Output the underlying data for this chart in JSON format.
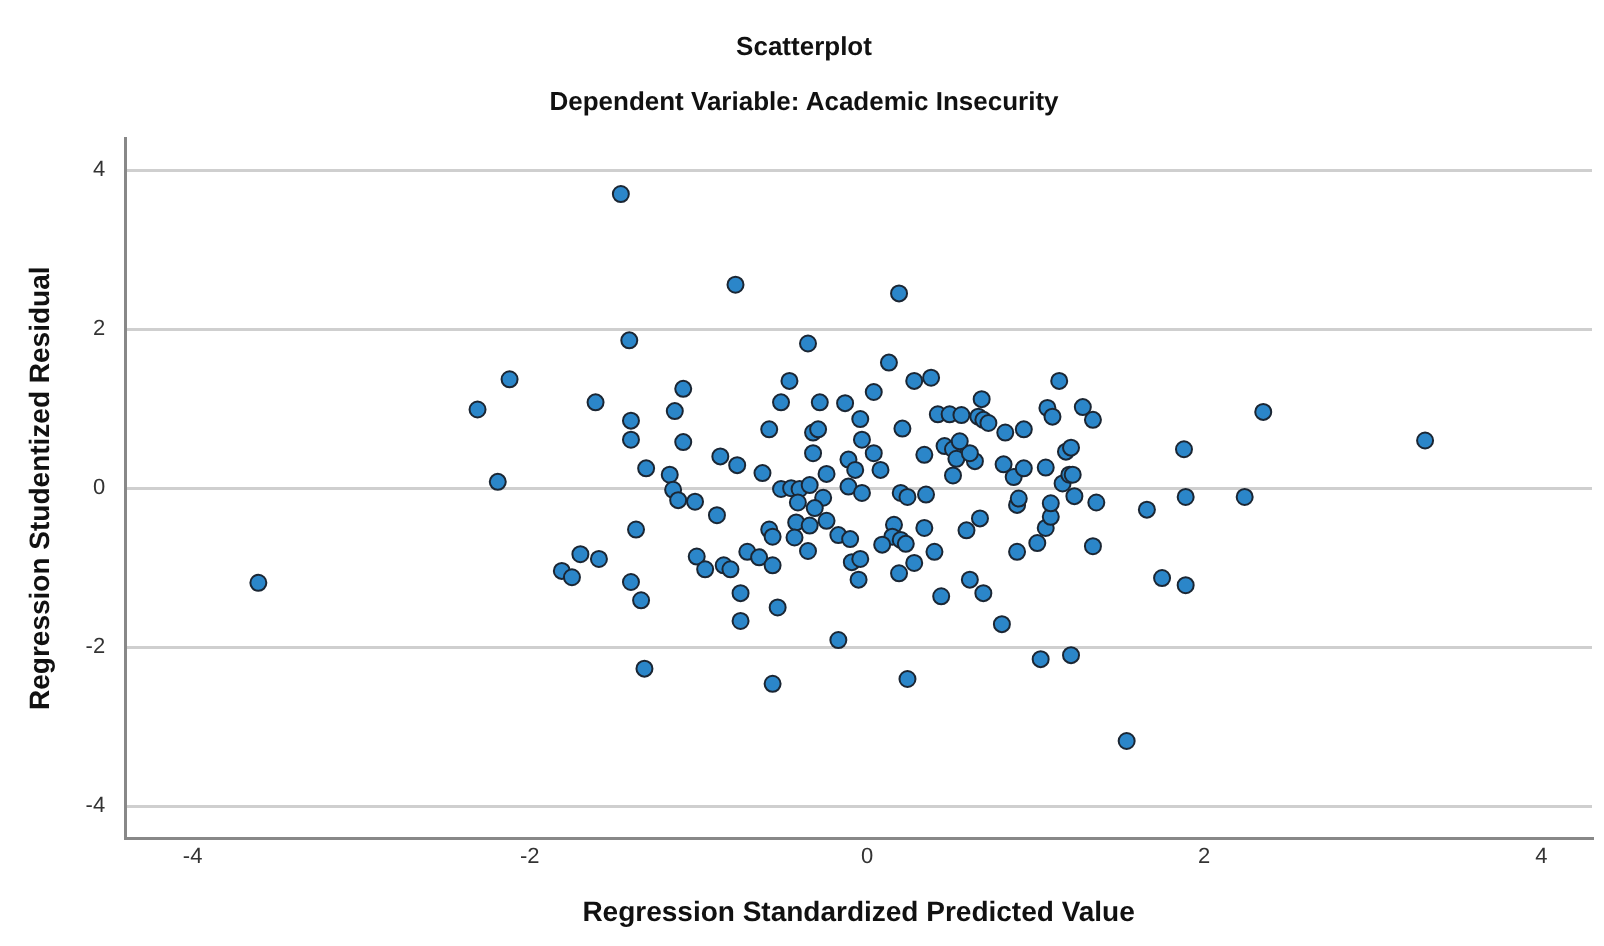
{
  "chart_data": {
    "type": "scatter",
    "title": "Scatterplot",
    "subtitle": "Dependent Variable: Academic Insecurity",
    "xlabel": "Regression Standardized Predicted Value",
    "ylabel": "Regression Studentized Residual",
    "xlim": [
      -4.4,
      4.3
    ],
    "ylim": [
      -4.4,
      4.4
    ],
    "xticks": [
      -4,
      -2,
      0,
      2,
      4
    ],
    "yticks": [
      -4,
      -2,
      0,
      2,
      4
    ],
    "grid": "y",
    "legend": false,
    "marker": "circle",
    "series": [
      {
        "color": "#2b86c9",
        "x": [
          -3.61,
          -2.31,
          -2.12,
          -2.19,
          -1.61,
          -1.81,
          -1.75,
          -1.7,
          -1.59,
          -1.46,
          -0.78,
          0.19,
          -1.41,
          -0.35,
          0.13,
          -1.09,
          -0.46,
          0.28,
          0.38,
          -1.4,
          -1.14,
          -0.51,
          -0.28,
          -0.13,
          0.04,
          -0.04,
          0.42,
          0.49,
          -1.4,
          -1.09,
          -0.58,
          -0.32,
          -0.29,
          -0.03,
          0.21,
          -1.31,
          -1.17,
          -0.87,
          -0.77,
          -0.62,
          -0.32,
          -0.24,
          -0.11,
          -0.07,
          0.04,
          0.08,
          0.34,
          0.46,
          0.51,
          0.53,
          0.51,
          -1.15,
          -0.51,
          -0.45,
          -0.4,
          -0.34,
          -0.26,
          -0.41,
          -1.12,
          -1.02,
          -0.11,
          -0.03,
          0.2,
          0.24,
          0.35,
          -1.37,
          -1.4,
          -1.34,
          -1.32,
          -0.89,
          -1.01,
          -0.96,
          -0.85,
          -0.81,
          -0.71,
          -0.64,
          -0.56,
          -0.75,
          -0.75,
          -0.53,
          -0.58,
          -0.56,
          -0.42,
          -0.43,
          -0.35,
          -0.31,
          -0.34,
          -0.24,
          -0.17,
          -0.1,
          -0.09,
          -0.04,
          -0.05,
          -0.17,
          -0.56,
          0.24,
          0.16,
          0.15,
          0.2,
          0.23,
          0.09,
          0.34,
          0.4,
          0.28,
          0.19,
          0.44,
          2.35,
          3.31,
          1.88,
          1.89,
          2.24,
          1.66,
          1.75,
          1.89,
          1.54,
          1.03,
          1.21,
          0.8,
          0.61,
          0.69,
          0.59,
          0.67,
          0.89,
          1.01,
          1.06,
          1.09,
          1.09,
          1.34,
          1.36,
          1.23,
          0.89,
          0.9,
          0.87,
          0.93,
          1.06,
          1.16,
          1.2,
          1.22,
          0.81,
          0.64,
          0.61,
          0.55,
          1.18,
          1.21,
          0.82,
          0.93,
          0.56,
          0.66,
          0.69,
          0.72,
          0.68,
          1.07,
          1.1,
          1.28,
          1.34,
          1.14
        ],
        "values": [
          -1.19,
          0.99,
          1.37,
          0.08,
          1.08,
          -1.04,
          -1.12,
          -0.83,
          -0.89,
          3.7,
          2.56,
          2.45,
          1.86,
          1.82,
          1.58,
          1.25,
          1.35,
          1.35,
          1.39,
          0.85,
          0.97,
          1.08,
          1.08,
          1.07,
          1.21,
          0.87,
          0.93,
          0.93,
          0.61,
          0.58,
          0.74,
          0.7,
          0.74,
          0.61,
          0.75,
          0.25,
          0.17,
          0.4,
          0.29,
          0.19,
          0.44,
          0.18,
          0.36,
          0.23,
          0.44,
          0.23,
          0.42,
          0.53,
          0.49,
          0.37,
          0.16,
          -0.02,
          -0.01,
          0.0,
          -0.01,
          0.04,
          -0.12,
          -0.18,
          -0.15,
          -0.17,
          0.02,
          -0.06,
          -0.06,
          -0.11,
          -0.08,
          -0.52,
          -1.18,
          -1.41,
          -2.27,
          -0.34,
          -0.86,
          -1.02,
          -0.97,
          -1.02,
          -0.8,
          -0.87,
          -0.97,
          -1.32,
          -1.67,
          -1.5,
          -0.52,
          -0.61,
          -0.43,
          -0.62,
          -0.79,
          -0.25,
          -0.47,
          -0.41,
          -0.59,
          -0.64,
          -0.93,
          -0.89,
          -1.15,
          -1.91,
          -2.46,
          -2.4,
          -0.46,
          -0.61,
          -0.65,
          -0.7,
          -0.71,
          -0.5,
          -0.8,
          -0.94,
          -1.07,
          -1.36,
          0.96,
          0.6,
          0.49,
          -0.11,
          -0.11,
          -0.27,
          -1.13,
          -1.22,
          -3.18,
          -2.15,
          -2.1,
          -1.71,
          -1.15,
          -1.32,
          -0.53,
          -0.38,
          -0.8,
          -0.69,
          -0.5,
          -0.36,
          -0.19,
          -0.73,
          -0.18,
          -0.1,
          -0.21,
          -0.13,
          0.14,
          0.25,
          0.26,
          0.06,
          0.17,
          0.17,
          0.3,
          0.34,
          0.44,
          0.59,
          0.46,
          0.51,
          0.7,
          0.74,
          0.92,
          0.9,
          0.86,
          0.82,
          1.12,
          1.01,
          0.9,
          1.02,
          0.86,
          1.35
        ]
      }
    ]
  }
}
